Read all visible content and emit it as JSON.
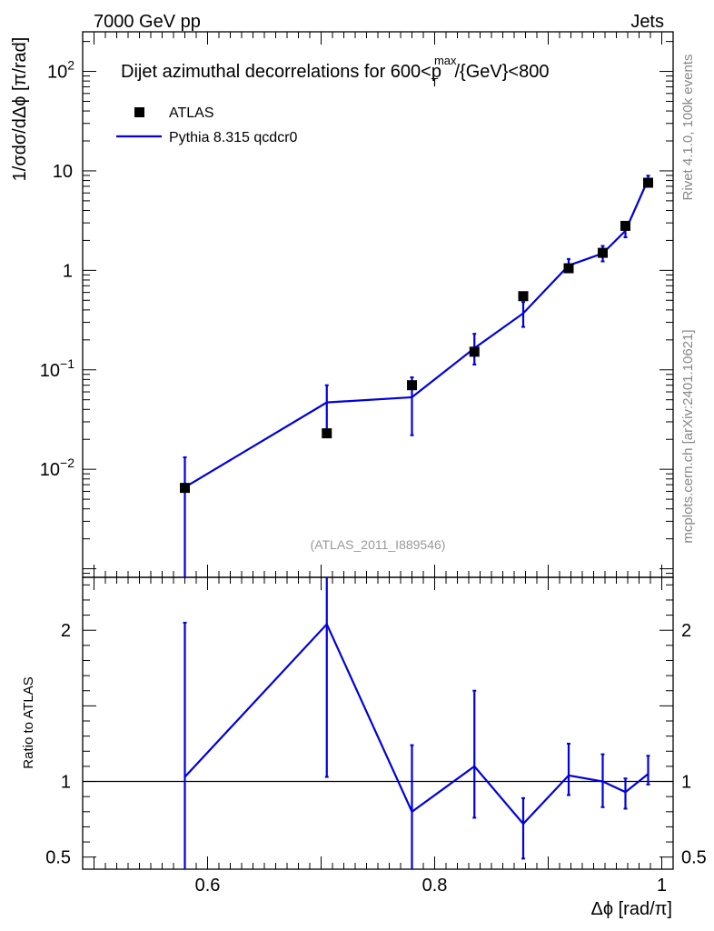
{
  "header": {
    "left": "7000 GeV pp",
    "right": "Jets"
  },
  "side_labels": {
    "rivet": "Rivet 4.1.0,  100k events",
    "mcplots": "mcplots.cern.ch [arXiv:2401.10621]"
  },
  "chart_data": {
    "type": "scatter",
    "title": "Dijet azimuthal decorrelations for 600<p_T^max/{GeV}<800",
    "title_parts": {
      "pre": "Dijet azimuthal decorrelations for 600<p",
      "sub": "T",
      "sup": "max",
      "post": "/{GeV}<800"
    },
    "analysis_id": "(ATLAS_2011_I889546)",
    "xlabel": "Δϕ [rad/π]",
    "ylabel": "1/σdσ/dΔϕ [π/rad]",
    "ratio_ylabel": "Ratio to ATLAS",
    "xlim": [
      0.49,
      1.01
    ],
    "ylim": [
      0.00082,
      250
    ],
    "yscale": "log",
    "ratio_ylim": [
      0.42,
      2.35
    ],
    "x_ticks": [
      {
        "v": 0.6,
        "label": "0.6"
      },
      {
        "v": 0.8,
        "label": "0.8"
      },
      {
        "v": 1.0,
        "label": "1"
      }
    ],
    "y_ticks": [
      {
        "v": 0.01,
        "base": "10",
        "exp": "−2"
      },
      {
        "v": 0.1,
        "base": "10",
        "exp": "−1"
      },
      {
        "v": 1,
        "base": "1",
        "exp": ""
      },
      {
        "v": 10,
        "base": "10",
        "exp": ""
      },
      {
        "v": 100,
        "base": "10",
        "exp": "2"
      }
    ],
    "ratio_ticks": [
      {
        "v": 0.5,
        "label": "0.5"
      },
      {
        "v": 1,
        "label": "1"
      },
      {
        "v": 2,
        "label": "2"
      }
    ],
    "legend": [
      {
        "name": "ATLAS",
        "kind": "marker"
      },
      {
        "name": "Pythia 8.315 qcdcr0",
        "kind": "line"
      }
    ],
    "series": [
      {
        "name": "ATLAS",
        "x": [
          0.58,
          0.705,
          0.78,
          0.835,
          0.878,
          0.918,
          0.948,
          0.968,
          0.988
        ],
        "y": [
          0.0065,
          0.023,
          0.07,
          0.152,
          0.55,
          1.05,
          1.5,
          2.8,
          7.6
        ]
      },
      {
        "name": "Pythia 8.315 qcdcr0",
        "x": [
          0.58,
          0.705,
          0.78,
          0.835,
          0.878,
          0.918,
          0.948,
          0.968,
          0.988
        ],
        "y": [
          0.0066,
          0.047,
          0.053,
          0.165,
          0.37,
          1.12,
          1.48,
          2.5,
          8.2
        ],
        "err_lo": [
          0.0066,
          0.023,
          0.031,
          0.052,
          0.1,
          0.15,
          0.25,
          0.35,
          0.6
        ],
        "err_hi": [
          0.0066,
          0.023,
          0.031,
          0.065,
          0.11,
          0.18,
          0.28,
          0.45,
          0.75
        ],
        "color": "#0000e0"
      }
    ],
    "ratio": {
      "x": [
        0.58,
        0.705,
        0.78,
        0.835,
        0.878,
        0.918,
        0.948,
        0.968,
        0.988
      ],
      "y": [
        1.03,
        2.04,
        0.8,
        1.1,
        0.72,
        1.04,
        1.0,
        0.93,
        1.05
      ],
      "err_lo": [
        0.72,
        1.01,
        0.43,
        0.34,
        0.23,
        0.13,
        0.17,
        0.11,
        0.07
      ],
      "err_hi": [
        1.02,
        1.0,
        0.44,
        0.5,
        0.17,
        0.21,
        0.18,
        0.09,
        0.12
      ]
    }
  }
}
